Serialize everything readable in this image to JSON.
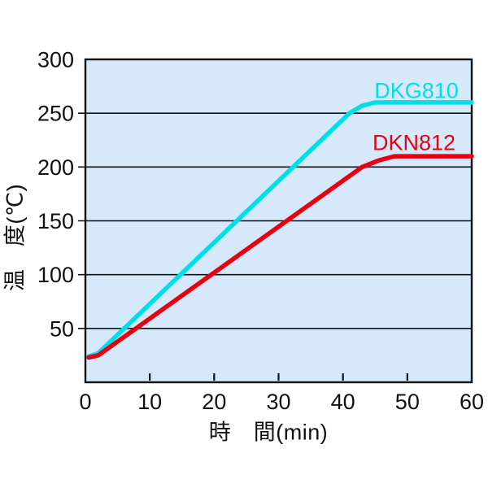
{
  "page": {
    "background": "#ffffff"
  },
  "chart_data": {
    "type": "line",
    "title": "",
    "xlabel": "時　間(min)",
    "ylabel": "温　度(℃)",
    "x_unit": "min",
    "y_unit": "℃",
    "xlim": [
      0,
      60
    ],
    "ylim": [
      0,
      300
    ],
    "xticks": [
      0,
      10,
      20,
      30,
      40,
      50,
      60
    ],
    "yticks": [
      50,
      100,
      150,
      200,
      250,
      300
    ],
    "grid": "horizontal-only",
    "legend_position": "inline-labels-right",
    "plot_background": "#d6e9fa",
    "axis_color": "#111111",
    "series": [
      {
        "name": "DKG810",
        "color": "#00dee8",
        "max_temp": 260,
        "points": [
          [
            0.5,
            24
          ],
          [
            2,
            27
          ],
          [
            41,
            250
          ],
          [
            43,
            257
          ],
          [
            45,
            260
          ],
          [
            60,
            260
          ]
        ]
      },
      {
        "name": "DKN812",
        "color": "#e60012",
        "max_temp": 210,
        "points": [
          [
            0.5,
            23
          ],
          [
            2,
            25
          ],
          [
            43,
            200
          ],
          [
            45.5,
            206
          ],
          [
            48,
            210
          ],
          [
            60,
            210
          ]
        ]
      }
    ]
  }
}
